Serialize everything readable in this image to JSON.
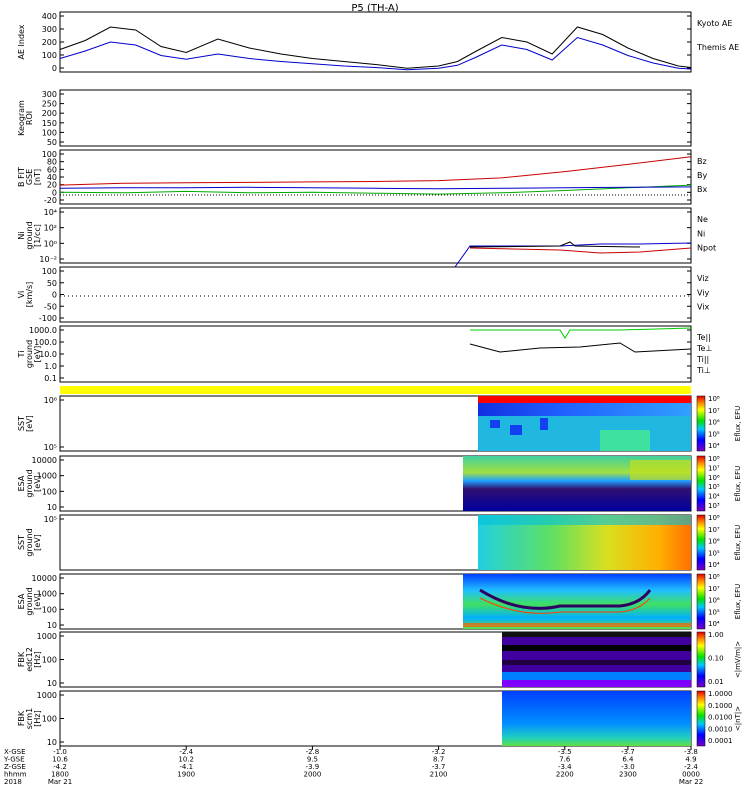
{
  "chart_data": {
    "type": "line",
    "title": "P5 (TH-A)",
    "panels": [
      {
        "id": "ae",
        "ylabel": "AE Index",
        "ylim": [
          0,
          400
        ],
        "yticks": [
          "400",
          "300",
          "200",
          "100",
          "0"
        ],
        "legend": [
          {
            "label": "Kyoto AE",
            "color": "#0000cc"
          },
          {
            "label": "Themis AE",
            "color": "#000000"
          }
        ],
        "x": [
          0,
          0.04,
          0.08,
          0.12,
          0.16,
          0.2,
          0.25,
          0.3,
          0.35,
          0.4,
          0.45,
          0.5,
          0.55,
          0.6,
          0.63,
          0.66,
          0.7,
          0.74,
          0.78,
          0.82,
          0.86,
          0.9,
          0.94,
          0.98,
          1.0
        ],
        "series": [
          {
            "name": "Themis AE",
            "color": "#000000",
            "values": [
              150,
              210,
              300,
              280,
              170,
              130,
              220,
              160,
              120,
              90,
              70,
              50,
              25,
              40,
              70,
              140,
              230,
              200,
              120,
              300,
              250,
              160,
              90,
              40,
              30
            ]
          },
          {
            "name": "Kyoto AE",
            "color": "#0000cc",
            "values": [
              90,
              140,
              200,
              180,
              110,
              85,
              120,
              90,
              70,
              55,
              40,
              30,
              15,
              25,
              45,
              100,
              180,
              150,
              80,
              230,
              180,
              110,
              60,
              25,
              20
            ]
          }
        ]
      },
      {
        "id": "keogram",
        "ylabel": "Keogram",
        "ylabel2": "ROI",
        "ylim": [
          0,
          300
        ],
        "yticks": [
          "300",
          "250",
          "200",
          "150",
          "100",
          "50"
        ],
        "series": []
      },
      {
        "id": "bfield",
        "ylabel": "B FIT",
        "ylabel2": "GSE",
        "ylabel3": "[nT]",
        "ylim": [
          -20,
          100
        ],
        "yticks": [
          "100",
          "80",
          "60",
          "40",
          "20",
          "0",
          "-20"
        ],
        "legend": [
          {
            "label": "Bz",
            "color": "#cc0000"
          },
          {
            "label": "By",
            "color": "#00aa00"
          },
          {
            "label": "Bx",
            "color": "#0000cc"
          }
        ],
        "x": [
          0,
          0.1,
          0.2,
          0.3,
          0.4,
          0.5,
          0.6,
          0.7,
          0.8,
          0.9,
          1.0
        ],
        "series": [
          {
            "name": "Bz",
            "color": "#cc0000",
            "values": [
              22,
              26,
              27,
              28,
              29,
              30,
              32,
              38,
              52,
              68,
              85
            ]
          },
          {
            "name": "By",
            "color": "#00aa00",
            "values": [
              6,
              5,
              8,
              5,
              6,
              4,
              2,
              5,
              10,
              16,
              22
            ]
          },
          {
            "name": "Bx",
            "color": "#0000cc",
            "values": [
              15,
              16,
              16,
              17,
              16,
              15,
              14,
              15,
              16,
              17,
              18
            ]
          }
        ]
      },
      {
        "id": "density",
        "ylabel": "Ni",
        "ylabel2": "ground",
        "ylabel3": "[1/cc]",
        "yticks": [
          "10⁴",
          "10²",
          "10⁰",
          "10⁻²"
        ],
        "legend": [
          {
            "label": "Ne",
            "color": "#cc0000"
          },
          {
            "label": "Ni",
            "color": "#000000"
          },
          {
            "label": "Npot",
            "color": "#0000cc"
          }
        ],
        "series": []
      },
      {
        "id": "velocity",
        "ylabel": "Vi",
        "ylabel2": "[km/s]",
        "ylim": [
          -100,
          100
        ],
        "yticks": [
          "100",
          "50",
          "0",
          "-50",
          "-100"
        ],
        "legend": [
          {
            "label": "Viz",
            "color": "#cc0000"
          },
          {
            "label": "Viy",
            "color": "#00aa00"
          },
          {
            "label": "Vix",
            "color": "#0000cc"
          }
        ],
        "series": []
      },
      {
        "id": "temperature",
        "ylabel": "Ti",
        "ylabel2": "ground",
        "ylabel3": "[eV]",
        "yticks": [
          "1000.0",
          "100.0",
          "10.0",
          "1.0",
          "0.1"
        ],
        "legend": [
          {
            "label": "Te||",
            "color": "#000000"
          },
          {
            "label": "Te⊥",
            "color": "#cc0000"
          },
          {
            "label": "Ti||",
            "color": "#00aa00"
          },
          {
            "label": "Ti⊥",
            "color": "#0000cc"
          }
        ],
        "series": []
      },
      {
        "id": "sst1",
        "ylabel": "SST",
        "ylabel2": "[eV]",
        "yticks": [
          "10⁶",
          "10⁵"
        ],
        "cbar": [
          "10⁸",
          "10⁷",
          "10⁶",
          "10⁵",
          "10⁴"
        ],
        "cbar_label": "Eflux, EFU"
      },
      {
        "id": "esa1",
        "ylabel": "ESA",
        "ylabel2": "ground",
        "ylabel3": "[eV]",
        "yticks": [
          "10000",
          "1000",
          "100",
          "10"
        ],
        "cbar": [
          "10⁸",
          "10⁷",
          "10⁶",
          "10⁵",
          "10⁴",
          "10³"
        ],
        "cbar_label": "Eflux, EFU"
      },
      {
        "id": "sst2",
        "ylabel": "SST",
        "ylabel2": "ground",
        "ylabel3": "[eV]",
        "yticks": [
          "10⁵"
        ],
        "cbar": [
          "10⁸",
          "10⁷",
          "10⁶",
          "10⁵",
          "10⁴"
        ],
        "cbar_label": "Eflux, EFU"
      },
      {
        "id": "esa2",
        "ylabel": "ESA",
        "ylabel2": "ground",
        "ylabel3": "[eV]",
        "yticks": [
          "10000",
          "1000",
          "100",
          "10"
        ],
        "cbar": [
          "10⁸",
          "10⁷",
          "10⁶",
          "10⁵",
          "10⁴"
        ],
        "cbar_label": "Eflux, EFU"
      },
      {
        "id": "fbk1",
        "ylabel": "FBK",
        "ylabel2": "edc12",
        "ylabel3": "[Hz]",
        "yticks": [
          "1000",
          "100",
          "10"
        ],
        "cbar": [
          "1.00",
          "0.10",
          "0.01"
        ],
        "cbar_label": "<|mV/m|>"
      },
      {
        "id": "fbk2",
        "ylabel": "FBK",
        "ylabel2": "scm1",
        "ylabel3": "[Hz]",
        "yticks": [
          "1000",
          "100",
          "10"
        ],
        "cbar": [
          "1.0000",
          "0.1000",
          "0.0100",
          "0.0010",
          "0.0001"
        ],
        "cbar_label": "<|nT|>"
      }
    ],
    "xaxis": {
      "row_labels": [
        "X-GSE",
        "Y-GSE",
        "Z-GSE",
        "hhmm",
        "2018"
      ],
      "ticks": [
        {
          "pos": 0,
          "vals": [
            "-1.0",
            "10.6",
            "-4.2",
            "1800",
            "Mar 21"
          ]
        },
        {
          "pos": 0.2,
          "vals": [
            "-2.4",
            "10.2",
            "-4.1",
            "1900",
            ""
          ]
        },
        {
          "pos": 0.4,
          "vals": [
            "-2.8",
            "9.5",
            "-3.9",
            "2000",
            ""
          ]
        },
        {
          "pos": 0.6,
          "vals": [
            "-3.2",
            "8.7",
            "-3.7",
            "2100",
            ""
          ]
        },
        {
          "pos": 0.8,
          "vals": [
            "-3.5",
            "7.6",
            "-3.4",
            "2200",
            ""
          ]
        },
        {
          "pos": 0.9,
          "vals": [
            "-3.7",
            "6.4",
            "-3.0",
            "2300",
            ""
          ]
        },
        {
          "pos": 1.0,
          "vals": [
            "-3.8",
            "4.9",
            "-2.4",
            "0000",
            "Mar 22"
          ]
        }
      ]
    }
  }
}
